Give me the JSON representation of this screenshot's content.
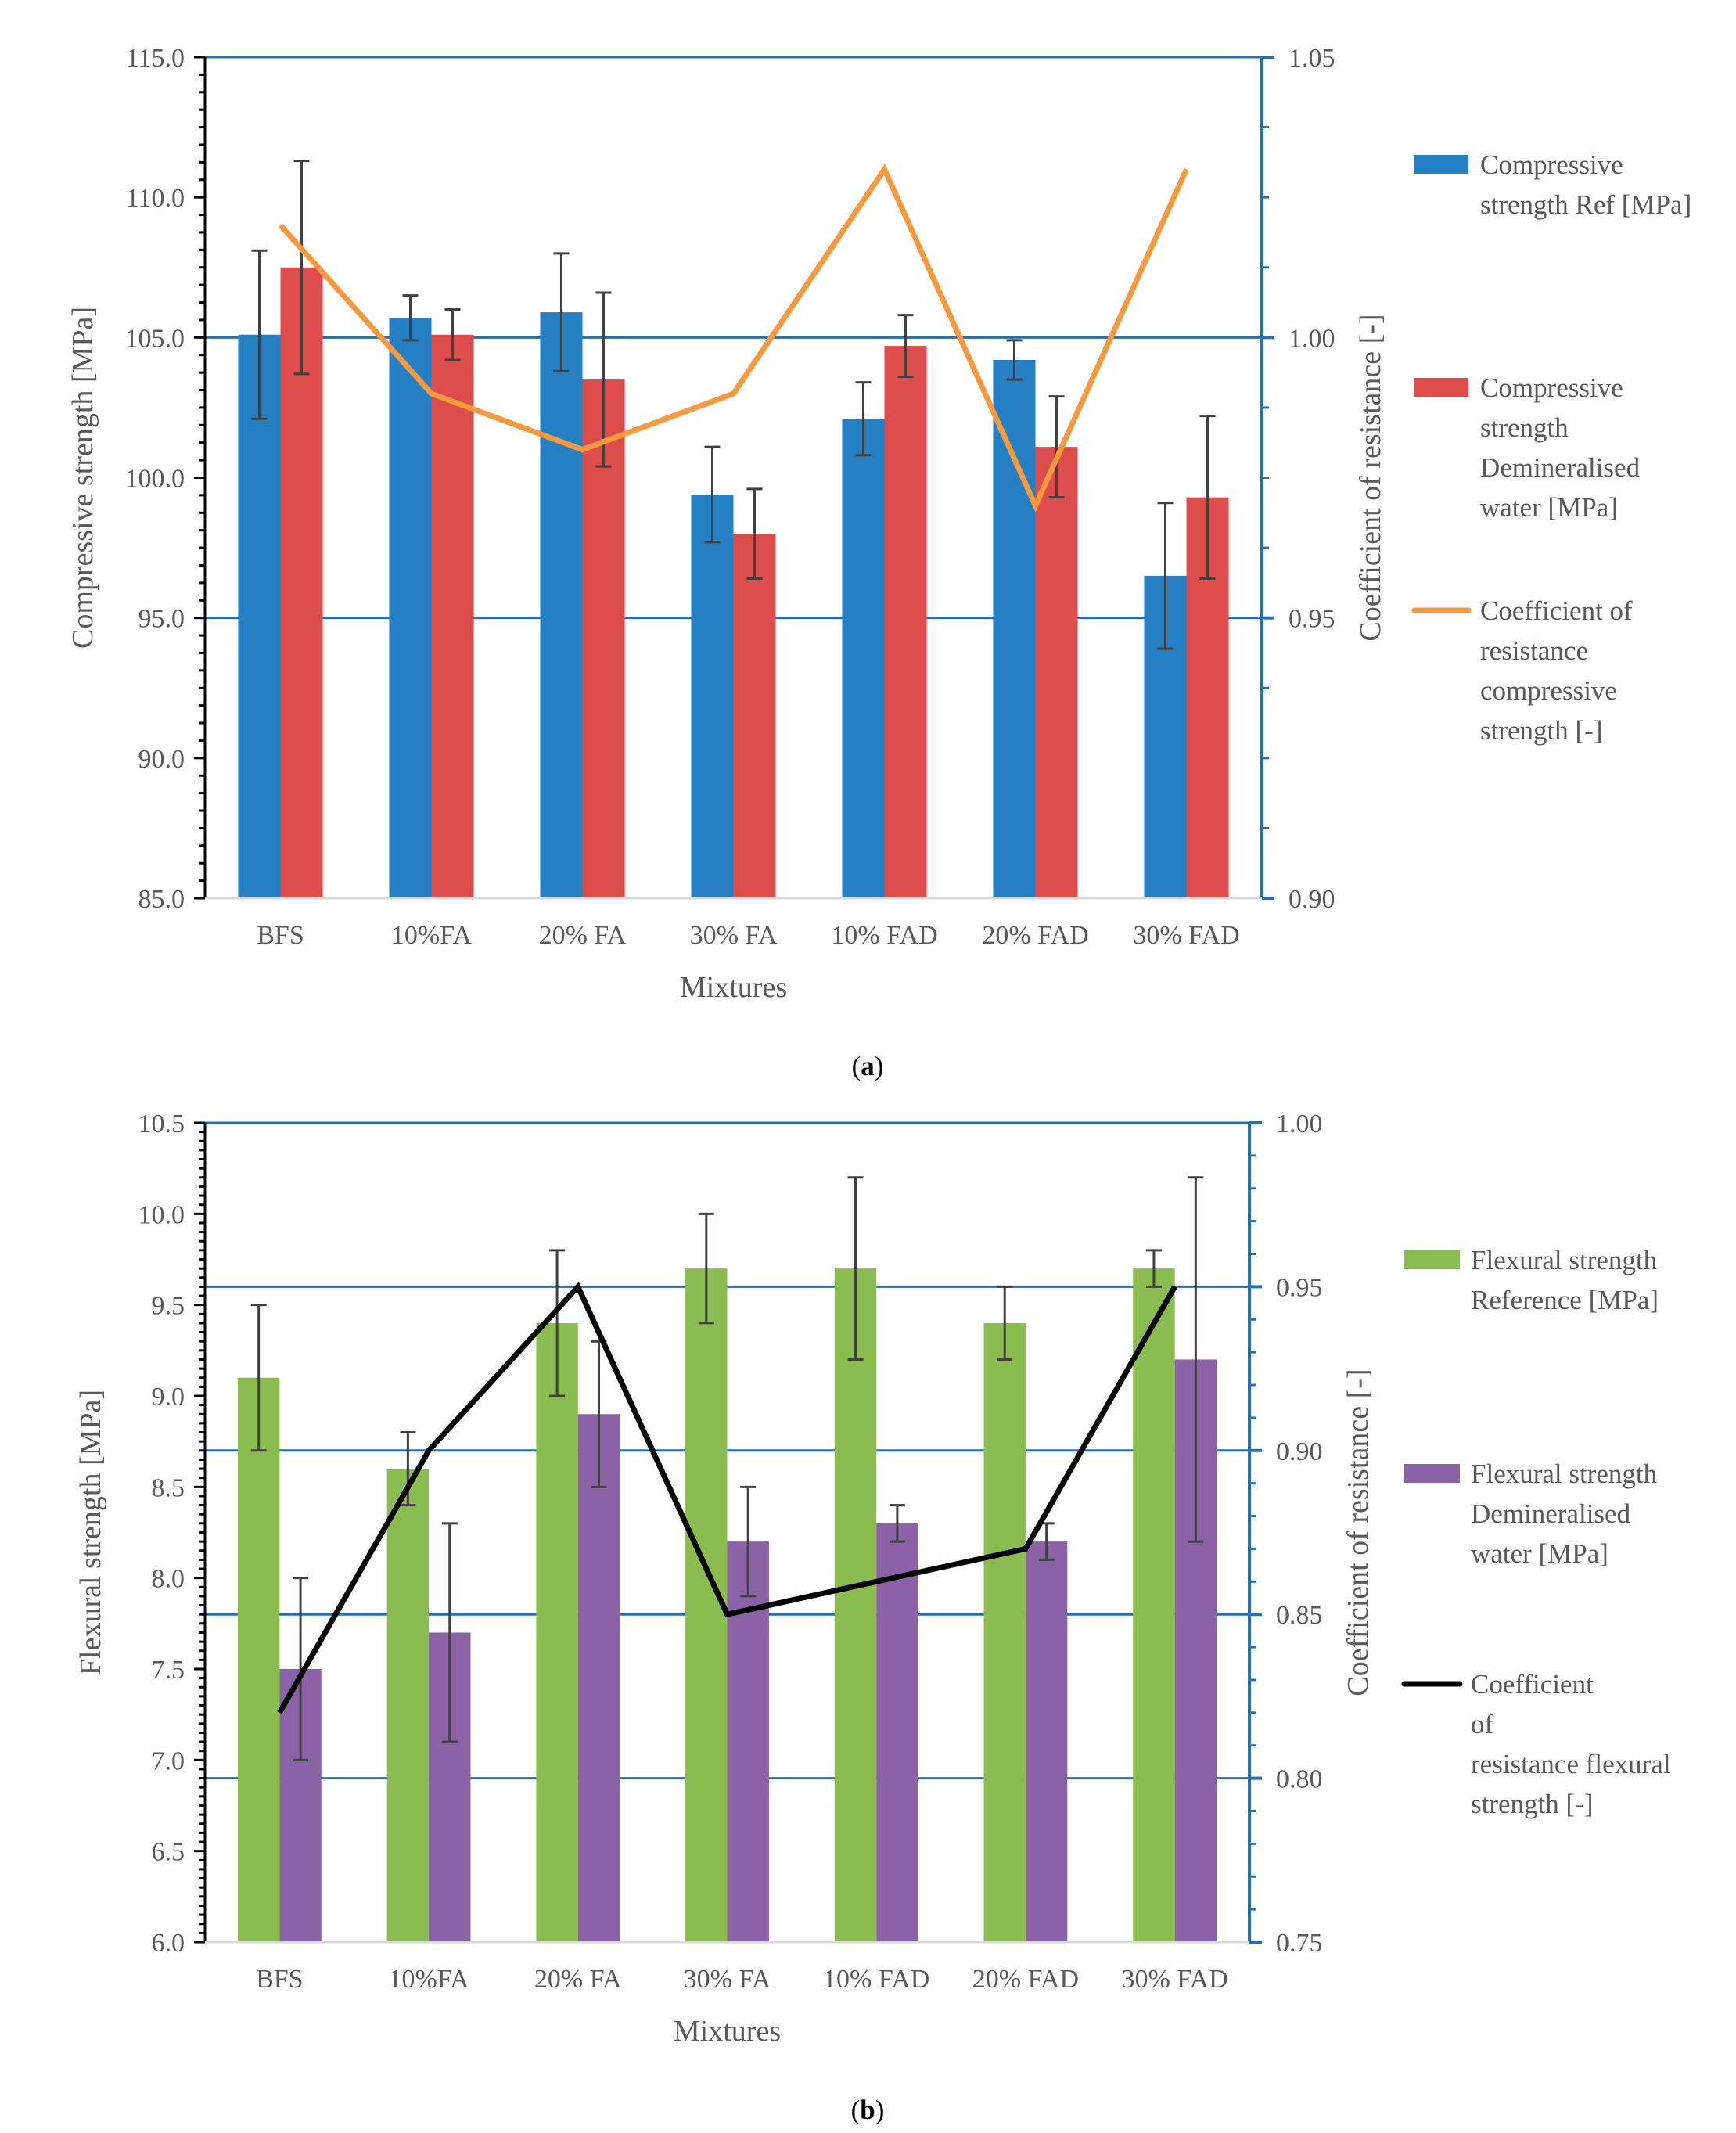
{
  "colors": {
    "blue": "#2580c3",
    "red": "#dc4d4b",
    "orange": "#f8993d",
    "green": "#8bbc50",
    "purple": "#8c62a6",
    "black": "#000000",
    "axis_blue": "#2271b4",
    "text_gray": "#595959",
    "error_bar": "#404040"
  },
  "chart_data": [
    {
      "panel": "(a)",
      "panel_letter": "a",
      "type": "bar",
      "title": "",
      "categories": [
        "BFS",
        "10%FA",
        "20% FA",
        "30% FA",
        "10% FAD",
        "20% FAD",
        "30% FAD"
      ],
      "xlabel": "Mixtures",
      "ylabel": "Compressive strength [MPa]",
      "y2label": "Coefficient of resistance [-]",
      "ylim": [
        85.0,
        115.0
      ],
      "y2lim": [
        0.9,
        1.05
      ],
      "yticks": [
        "85.0",
        "90.0",
        "95.0",
        "100.0",
        "105.0",
        "110.0",
        "115.0"
      ],
      "y2ticks": [
        "0.90",
        "0.95",
        "1.00",
        "1.05"
      ],
      "series": [
        {
          "name": "Compressive strength Ref [MPa]",
          "legend_lines": [
            "Compressive",
            "strength Ref [MPa]"
          ],
          "kind": "bar",
          "axis": "left",
          "color": "#2580c3",
          "values": [
            105.1,
            105.7,
            105.9,
            99.4,
            102.1,
            104.2,
            96.5
          ],
          "error": [
            3.0,
            0.8,
            2.1,
            1.7,
            1.3,
            0.7,
            2.6
          ]
        },
        {
          "name": "Compressive strength Demineralised water [MPa]",
          "legend_lines": [
            "Compressive",
            "strength",
            "Demineralised",
            "water [MPa]"
          ],
          "kind": "bar",
          "axis": "left",
          "color": "#dc4d4b",
          "values": [
            107.5,
            105.1,
            103.5,
            98.0,
            104.7,
            101.1,
            99.3
          ],
          "error": [
            3.8,
            0.9,
            3.1,
            1.6,
            1.1,
            1.8,
            2.9
          ]
        },
        {
          "name": "Coefficient of resistance compressive strength [-]",
          "legend_lines": [
            "Coefficient of",
            "resistance",
            "compressive",
            "strength [-]"
          ],
          "kind": "line",
          "axis": "right",
          "color": "#f8993d",
          "values": [
            1.02,
            0.99,
            0.98,
            0.99,
            1.03,
            0.97,
            1.03
          ]
        }
      ]
    },
    {
      "panel": "(b)",
      "panel_letter": "b",
      "type": "bar",
      "title": "",
      "categories": [
        "BFS",
        "10%FA",
        "20% FA",
        "30% FA",
        "10% FAD",
        "20% FAD",
        "30% FAD"
      ],
      "xlabel": "Mixtures",
      "ylabel": "Flexural strength [MPa]",
      "y2label": "Coefficient of resistance [-]",
      "ylim": [
        6.0,
        10.5
      ],
      "y2lim": [
        0.75,
        1.0
      ],
      "yticks": [
        "6.0",
        "6.5",
        "7.0",
        "7.5",
        "8.0",
        "8.5",
        "9.0",
        "9.5",
        "10.0",
        "10.5"
      ],
      "y2ticks": [
        "0.75",
        "0.80",
        "0.85",
        "0.90",
        "0.95",
        "1.00"
      ],
      "series": [
        {
          "name": "Flexural strength Reference [MPa]",
          "legend_lines": [
            "Flexural  strength",
            "Reference [MPa]"
          ],
          "kind": "bar",
          "axis": "left",
          "color": "#8bbc50",
          "values": [
            9.1,
            8.6,
            9.4,
            9.7,
            9.7,
            9.4,
            9.7
          ],
          "error": [
            0.4,
            0.2,
            0.4,
            0.3,
            0.5,
            0.2,
            0.1
          ]
        },
        {
          "name": "Flexural strength Demineralised water [MPa]",
          "legend_lines": [
            "Flexural strength",
            "Demineralised",
            "water [MPa]"
          ],
          "kind": "bar",
          "axis": "left",
          "color": "#8c62a6",
          "values": [
            7.5,
            7.7,
            8.9,
            8.2,
            8.3,
            8.2,
            9.2
          ],
          "error": [
            0.5,
            0.6,
            0.4,
            0.3,
            0.1,
            0.1,
            1.0
          ]
        },
        {
          "name": "Coefficient of resistance flexural strength [-]",
          "legend_lines": [
            "Coefficient",
            "of",
            "resistance flexural",
            "strength [-]"
          ],
          "kind": "line",
          "axis": "right",
          "color": "#000000",
          "values": [
            0.82,
            0.9,
            0.95,
            0.85,
            0.86,
            0.87,
            0.95
          ]
        }
      ]
    }
  ]
}
